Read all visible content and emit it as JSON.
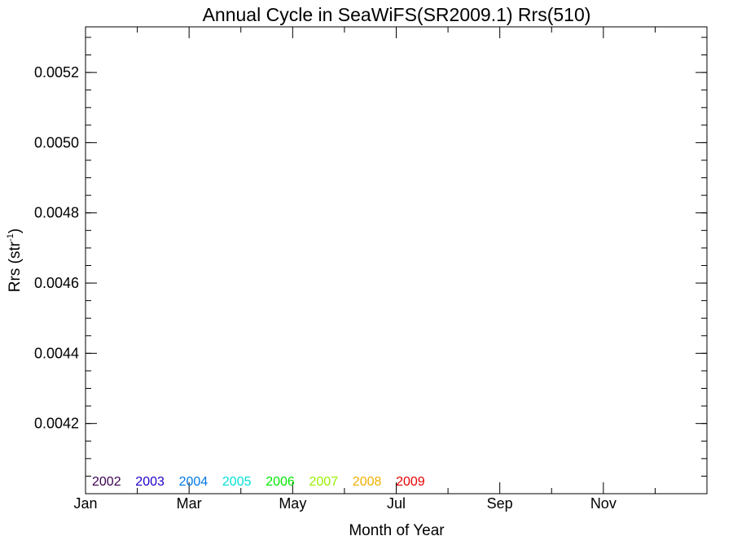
{
  "chart_data": {
    "type": "line",
    "title": "Annual Cycle in SeaWiFS(SR2009.1) Rrs(510)",
    "xlabel": "Month of Year",
    "ylabel_main": "Rrs (str",
    "ylabel_sup": "-1",
    "ylabel_close": ")",
    "xlim": [
      1,
      13
    ],
    "ylim": [
      0.004,
      0.00533
    ],
    "x_ticks": [
      {
        "value": 1,
        "label": "Jan"
      },
      {
        "value": 3,
        "label": "Mar"
      },
      {
        "value": 5,
        "label": "May"
      },
      {
        "value": 7,
        "label": "Jul"
      },
      {
        "value": 9,
        "label": "Sep"
      },
      {
        "value": 11,
        "label": "Nov"
      }
    ],
    "x_minor_ticks": [
      2,
      4,
      6,
      8,
      10,
      12
    ],
    "y_ticks": [
      {
        "value": 0.0042,
        "label": "0.0042"
      },
      {
        "value": 0.0044,
        "label": "0.0044"
      },
      {
        "value": 0.0046,
        "label": "0.0046"
      },
      {
        "value": 0.0048,
        "label": "0.0048"
      },
      {
        "value": 0.005,
        "label": "0.0050"
      },
      {
        "value": 0.0052,
        "label": "0.0052"
      }
    ],
    "y_minor_step": 5e-05,
    "grid": false,
    "legend_placement": "bottom-left",
    "series": [
      {
        "name": "2002",
        "color": "#3a0050",
        "values": []
      },
      {
        "name": "2003",
        "color": "#2000c8",
        "values": []
      },
      {
        "name": "2004",
        "color": "#0078e8",
        "values": []
      },
      {
        "name": "2005",
        "color": "#00e0d8",
        "values": []
      },
      {
        "name": "2006",
        "color": "#00e800",
        "values": []
      },
      {
        "name": "2007",
        "color": "#98f000",
        "values": []
      },
      {
        "name": "2008",
        "color": "#f0b000",
        "values": []
      },
      {
        "name": "2009",
        "color": "#e80000",
        "values": []
      }
    ]
  }
}
